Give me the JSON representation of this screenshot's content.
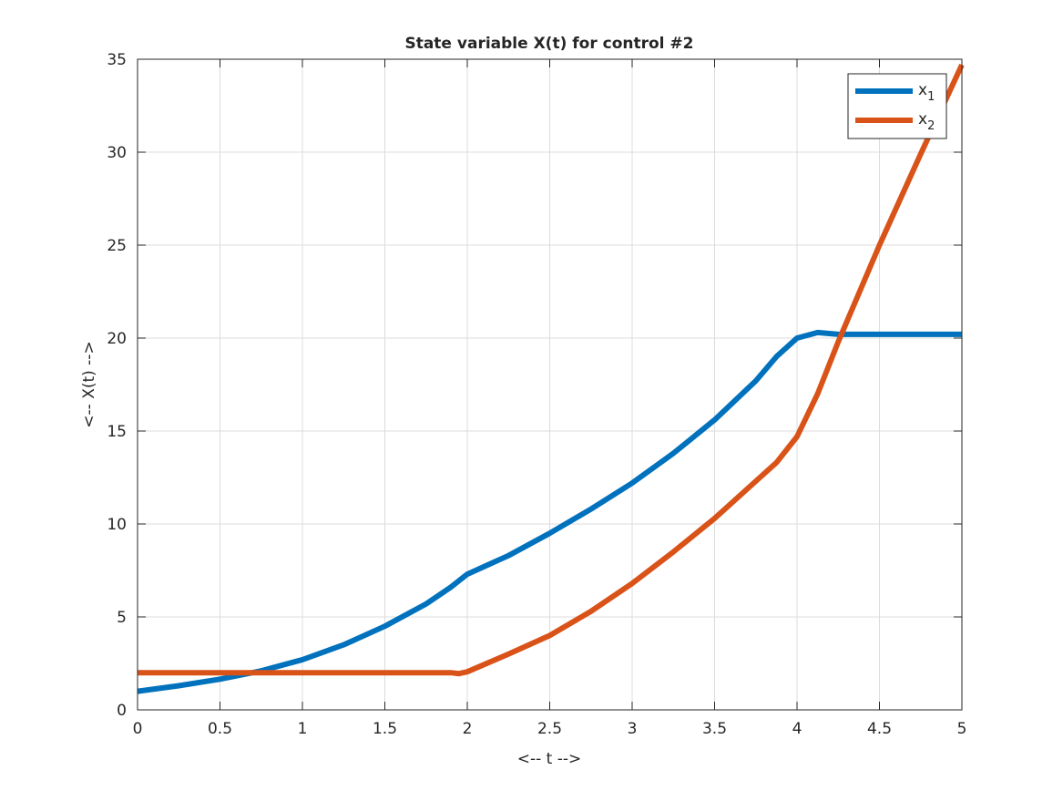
{
  "chart_data": {
    "type": "line",
    "title": "State variable X(t) for control #2",
    "xlabel": "<-- t -->",
    "ylabel": "<-- X(t) -->",
    "xlim": [
      0,
      5
    ],
    "ylim": [
      0,
      35
    ],
    "xticks": [
      "0",
      "0.5",
      "1",
      "1.5",
      "2",
      "2.5",
      "3",
      "3.5",
      "4",
      "4.5",
      "5"
    ],
    "yticks": [
      "0",
      "5",
      "10",
      "15",
      "20",
      "25",
      "30",
      "35"
    ],
    "grid": true,
    "legend_position": "top-right",
    "series": [
      {
        "name": "x",
        "sub": "1",
        "color": "#0072BD",
        "x": [
          0,
          0.25,
          0.5,
          0.75,
          1,
          1.25,
          1.5,
          1.75,
          1.9,
          2,
          2.125,
          2.25,
          2.5,
          2.75,
          3,
          3.25,
          3.5,
          3.75,
          3.875,
          4,
          4.125,
          4.25,
          4.5,
          4.75,
          5
        ],
        "y": [
          1,
          1.3,
          1.65,
          2.1,
          2.7,
          3.5,
          4.5,
          5.7,
          6.6,
          7.3,
          7.8,
          8.3,
          9.5,
          10.8,
          12.2,
          13.8,
          15.6,
          17.7,
          19,
          20,
          20.3,
          20.2,
          20.2,
          20.2,
          20.2
        ]
      },
      {
        "name": "x",
        "sub": "2",
        "color": "#D95319",
        "x": [
          0,
          0.5,
          1,
          1.5,
          1.9,
          1.95,
          2,
          2.25,
          2.5,
          2.75,
          3,
          3.25,
          3.5,
          3.75,
          3.875,
          4,
          4.125,
          4.25,
          4.5,
          4.75,
          5
        ],
        "y": [
          2,
          2,
          2,
          2,
          2,
          1.95,
          2.05,
          3.0,
          4.0,
          5.3,
          6.8,
          8.5,
          10.3,
          12.3,
          13.3,
          14.7,
          17,
          19.8,
          25,
          29.9,
          34.7
        ]
      }
    ]
  }
}
